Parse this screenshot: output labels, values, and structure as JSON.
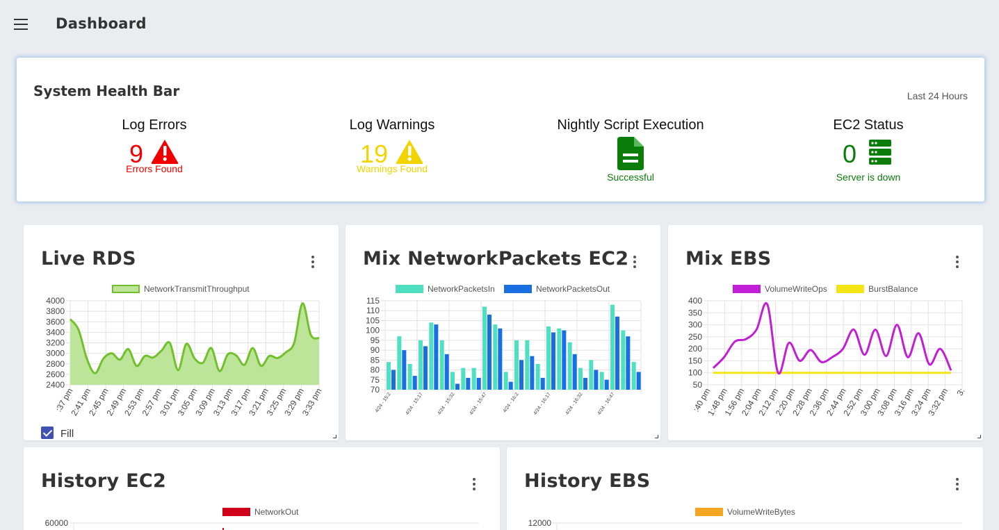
{
  "header": {
    "title": "Dashboard"
  },
  "health": {
    "title": "System Health Bar",
    "range": "Last 24 Hours",
    "metrics": [
      {
        "label": "Log Errors",
        "value": "9",
        "status": "Errors Found"
      },
      {
        "label": "Log Warnings",
        "value": "19",
        "status": "Warnings Found"
      },
      {
        "label": "Nightly Script Execution",
        "value": "",
        "status": "Successful"
      },
      {
        "label": "EC2 Status",
        "value": "0",
        "status": "Server is down"
      }
    ]
  },
  "cards": {
    "live_rds": {
      "title": "Live RDS",
      "fill_label": "Fill"
    },
    "mix_network": {
      "title": "Mix NetworkPackets EC2"
    },
    "mix_ebs": {
      "title": "Mix EBS"
    },
    "history_ec2": {
      "title": "History EC2"
    },
    "history_ebs": {
      "title": "History EBS"
    }
  },
  "colors": {
    "error": "#f10000",
    "warning": "#f1d400",
    "ok": "#0a7d0a",
    "rds_line": "#72c02c",
    "rds_fill": "#bce59a",
    "packets_in": "#4ee0c1",
    "packets_out": "#1a6fe0",
    "write_ops": "#c21ed6",
    "burst": "#f5e514",
    "network_out": "#d0021b",
    "write_bytes": "#f5a623"
  },
  "chart_data": [
    {
      "id": "live-rds",
      "type": "area",
      "series": [
        {
          "name": "NetworkTransmitThroughput",
          "values": [
            3650,
            3450,
            2900,
            2620,
            2900,
            3000,
            2880,
            3080,
            2760,
            2950,
            2920,
            3050,
            3200,
            2680,
            3180,
            2900,
            2820,
            3100,
            2660,
            2980,
            2960,
            2780,
            3100,
            2760,
            2950,
            2910,
            3020,
            3200,
            3950,
            3350,
            3290
          ]
        }
      ],
      "x_ticks": [
        ":37 pm",
        "2:41 pm",
        "2:45 pm",
        "2:49 pm",
        "2:53 pm",
        "2:57 pm",
        "3:01 pm",
        "3:05 pm",
        "3:09 pm",
        "3:13 pm",
        "3:17 pm",
        "3:21 pm",
        "3:25 pm",
        "3:29 pm",
        "3:33 pm"
      ],
      "y_ticks": [
        2400,
        2600,
        2800,
        3000,
        3200,
        3400,
        3600,
        3800,
        4000
      ],
      "ylim": [
        2400,
        4000
      ]
    },
    {
      "id": "mix-network",
      "type": "bar",
      "series": [
        {
          "name": "NetworkPacketsIn",
          "values": [
            84,
            97,
            83,
            95,
            104,
            95,
            79,
            81,
            81,
            112,
            103,
            79,
            95,
            95,
            83,
            102,
            101,
            94,
            81,
            85,
            79,
            113,
            100,
            84
          ]
        },
        {
          "name": "NetworkPacketsOut",
          "values": [
            80,
            90,
            77,
            92,
            103,
            88,
            73,
            76,
            76,
            108,
            101,
            74,
            85,
            87,
            76,
            99,
            100,
            88,
            76,
            80,
            75,
            107,
            97,
            79
          ]
        }
      ],
      "x_ticks": [
        "4/24 - 15:2",
        "4/24 - 15:17",
        "4/24 - 15:32",
        "4/24 - 15:47",
        "4/24 - 16:2",
        "4/24 - 16:17",
        "4/24 - 16:32",
        "4/24 - 16:47"
      ],
      "y_ticks": [
        70,
        75,
        80,
        85,
        90,
        95,
        100,
        105,
        110,
        115
      ],
      "ylim": [
        70,
        115
      ]
    },
    {
      "id": "mix-ebs",
      "type": "line",
      "series": [
        {
          "name": "VolumeWriteOps",
          "values": [
            120,
            165,
            230,
            240,
            280,
            385,
            100,
            225,
            150,
            195,
            145,
            165,
            200,
            280,
            175,
            280,
            170,
            300,
            165,
            265,
            135,
            200,
            110
          ]
        },
        {
          "name": "BurstBalance",
          "values": [
            100,
            100,
            100,
            100,
            100,
            100,
            100,
            100,
            100,
            100,
            100,
            100,
            100,
            100,
            100,
            100,
            100,
            100,
            100,
            100,
            100,
            100,
            100
          ]
        }
      ],
      "x_ticks": [
        ":40 pm",
        "1:48 pm",
        "1:56 pm",
        "2:04 pm",
        "2:12 pm",
        "2:20 pm",
        "2:28 pm",
        "2:36 pm",
        "2:44 pm",
        "2:52 pm",
        "3:00 pm",
        "3:08 pm",
        "3:16 pm",
        "3:24 pm",
        "3:32 pm",
        "3:"
      ],
      "y_ticks": [
        50,
        100,
        150,
        200,
        250,
        300,
        350,
        400
      ],
      "ylim": [
        50,
        400
      ]
    },
    {
      "id": "history-ec2",
      "type": "line",
      "series": [
        {
          "name": "NetworkOut",
          "values": []
        }
      ],
      "y_ticks": [
        60000
      ]
    },
    {
      "id": "history-ebs",
      "type": "line",
      "series": [
        {
          "name": "VolumeWriteBytes",
          "values": []
        }
      ],
      "y_ticks": [
        12000
      ]
    }
  ]
}
